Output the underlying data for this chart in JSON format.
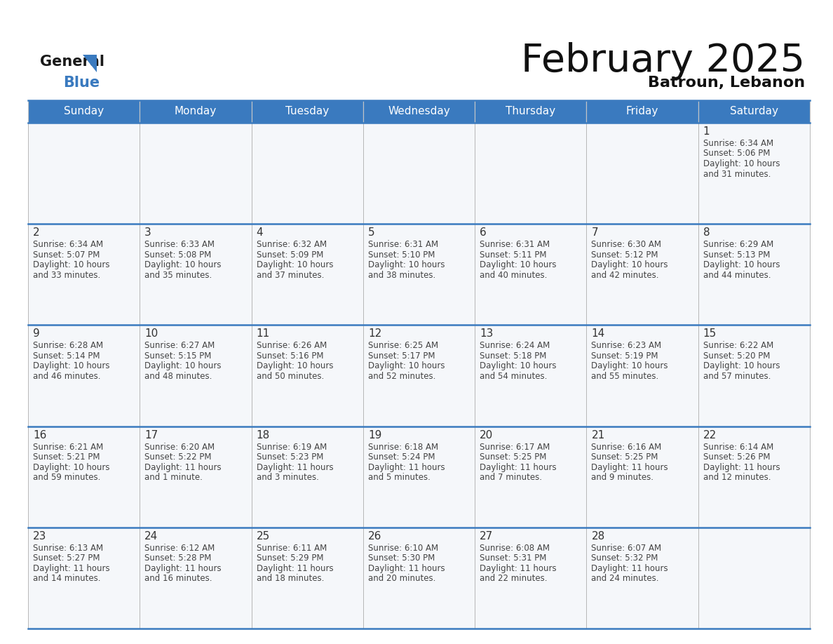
{
  "title": "February 2025",
  "subtitle": "Batroun, Lebanon",
  "header_color": "#3a7abf",
  "header_text_color": "#ffffff",
  "day_names": [
    "Sunday",
    "Monday",
    "Tuesday",
    "Wednesday",
    "Thursday",
    "Friday",
    "Saturday"
  ],
  "background_color": "#ffffff",
  "cell_bg": "#f5f7fa",
  "divider_color": "#3a7abf",
  "date_color": "#333333",
  "text_color": "#444444",
  "days": [
    {
      "date": 1,
      "col": 6,
      "row": 0,
      "sunrise": "6:34 AM",
      "sunset": "5:06 PM",
      "daylight_h": "10 hours",
      "daylight_m": "31 minutes."
    },
    {
      "date": 2,
      "col": 0,
      "row": 1,
      "sunrise": "6:34 AM",
      "sunset": "5:07 PM",
      "daylight_h": "10 hours",
      "daylight_m": "33 minutes."
    },
    {
      "date": 3,
      "col": 1,
      "row": 1,
      "sunrise": "6:33 AM",
      "sunset": "5:08 PM",
      "daylight_h": "10 hours",
      "daylight_m": "35 minutes."
    },
    {
      "date": 4,
      "col": 2,
      "row": 1,
      "sunrise": "6:32 AM",
      "sunset": "5:09 PM",
      "daylight_h": "10 hours",
      "daylight_m": "37 minutes."
    },
    {
      "date": 5,
      "col": 3,
      "row": 1,
      "sunrise": "6:31 AM",
      "sunset": "5:10 PM",
      "daylight_h": "10 hours",
      "daylight_m": "38 minutes."
    },
    {
      "date": 6,
      "col": 4,
      "row": 1,
      "sunrise": "6:31 AM",
      "sunset": "5:11 PM",
      "daylight_h": "10 hours",
      "daylight_m": "40 minutes."
    },
    {
      "date": 7,
      "col": 5,
      "row": 1,
      "sunrise": "6:30 AM",
      "sunset": "5:12 PM",
      "daylight_h": "10 hours",
      "daylight_m": "42 minutes."
    },
    {
      "date": 8,
      "col": 6,
      "row": 1,
      "sunrise": "6:29 AM",
      "sunset": "5:13 PM",
      "daylight_h": "10 hours",
      "daylight_m": "44 minutes."
    },
    {
      "date": 9,
      "col": 0,
      "row": 2,
      "sunrise": "6:28 AM",
      "sunset": "5:14 PM",
      "daylight_h": "10 hours",
      "daylight_m": "46 minutes."
    },
    {
      "date": 10,
      "col": 1,
      "row": 2,
      "sunrise": "6:27 AM",
      "sunset": "5:15 PM",
      "daylight_h": "10 hours",
      "daylight_m": "48 minutes."
    },
    {
      "date": 11,
      "col": 2,
      "row": 2,
      "sunrise": "6:26 AM",
      "sunset": "5:16 PM",
      "daylight_h": "10 hours",
      "daylight_m": "50 minutes."
    },
    {
      "date": 12,
      "col": 3,
      "row": 2,
      "sunrise": "6:25 AM",
      "sunset": "5:17 PM",
      "daylight_h": "10 hours",
      "daylight_m": "52 minutes."
    },
    {
      "date": 13,
      "col": 4,
      "row": 2,
      "sunrise": "6:24 AM",
      "sunset": "5:18 PM",
      "daylight_h": "10 hours",
      "daylight_m": "54 minutes."
    },
    {
      "date": 14,
      "col": 5,
      "row": 2,
      "sunrise": "6:23 AM",
      "sunset": "5:19 PM",
      "daylight_h": "10 hours",
      "daylight_m": "55 minutes."
    },
    {
      "date": 15,
      "col": 6,
      "row": 2,
      "sunrise": "6:22 AM",
      "sunset": "5:20 PM",
      "daylight_h": "10 hours",
      "daylight_m": "57 minutes."
    },
    {
      "date": 16,
      "col": 0,
      "row": 3,
      "sunrise": "6:21 AM",
      "sunset": "5:21 PM",
      "daylight_h": "10 hours",
      "daylight_m": "59 minutes."
    },
    {
      "date": 17,
      "col": 1,
      "row": 3,
      "sunrise": "6:20 AM",
      "sunset": "5:22 PM",
      "daylight_h": "11 hours",
      "daylight_m": "1 minute."
    },
    {
      "date": 18,
      "col": 2,
      "row": 3,
      "sunrise": "6:19 AM",
      "sunset": "5:23 PM",
      "daylight_h": "11 hours",
      "daylight_m": "3 minutes."
    },
    {
      "date": 19,
      "col": 3,
      "row": 3,
      "sunrise": "6:18 AM",
      "sunset": "5:24 PM",
      "daylight_h": "11 hours",
      "daylight_m": "5 minutes."
    },
    {
      "date": 20,
      "col": 4,
      "row": 3,
      "sunrise": "6:17 AM",
      "sunset": "5:25 PM",
      "daylight_h": "11 hours",
      "daylight_m": "7 minutes."
    },
    {
      "date": 21,
      "col": 5,
      "row": 3,
      "sunrise": "6:16 AM",
      "sunset": "5:25 PM",
      "daylight_h": "11 hours",
      "daylight_m": "9 minutes."
    },
    {
      "date": 22,
      "col": 6,
      "row": 3,
      "sunrise": "6:14 AM",
      "sunset": "5:26 PM",
      "daylight_h": "11 hours",
      "daylight_m": "12 minutes."
    },
    {
      "date": 23,
      "col": 0,
      "row": 4,
      "sunrise": "6:13 AM",
      "sunset": "5:27 PM",
      "daylight_h": "11 hours",
      "daylight_m": "14 minutes."
    },
    {
      "date": 24,
      "col": 1,
      "row": 4,
      "sunrise": "6:12 AM",
      "sunset": "5:28 PM",
      "daylight_h": "11 hours",
      "daylight_m": "16 minutes."
    },
    {
      "date": 25,
      "col": 2,
      "row": 4,
      "sunrise": "6:11 AM",
      "sunset": "5:29 PM",
      "daylight_h": "11 hours",
      "daylight_m": "18 minutes."
    },
    {
      "date": 26,
      "col": 3,
      "row": 4,
      "sunrise": "6:10 AM",
      "sunset": "5:30 PM",
      "daylight_h": "11 hours",
      "daylight_m": "20 minutes."
    },
    {
      "date": 27,
      "col": 4,
      "row": 4,
      "sunrise": "6:08 AM",
      "sunset": "5:31 PM",
      "daylight_h": "11 hours",
      "daylight_m": "22 minutes."
    },
    {
      "date": 28,
      "col": 5,
      "row": 4,
      "sunrise": "6:07 AM",
      "sunset": "5:32 PM",
      "daylight_h": "11 hours",
      "daylight_m": "24 minutes."
    }
  ]
}
